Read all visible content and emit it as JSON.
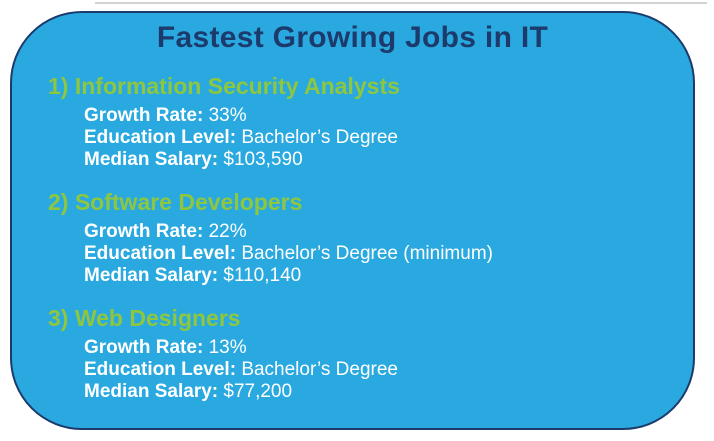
{
  "slide": {
    "title": "Fastest Growing Jobs in IT",
    "jobs": [
      {
        "rank": "1)",
        "name": "Information Security Analysts",
        "details": [
          {
            "label": "Growth Rate:",
            "value": "33%"
          },
          {
            "label": "Education Level:",
            "value": "Bachelor’s Degree"
          },
          {
            "label": "Median Salary:",
            "value": "$103,590"
          }
        ]
      },
      {
        "rank": "2)",
        "name": "Software Developers",
        "details": [
          {
            "label": "Growth Rate:",
            "value": "22%"
          },
          {
            "label": "Education Level:",
            "value": "Bachelor’s Degree (minimum)"
          },
          {
            "label": "Median Salary:",
            "value": "$110,140"
          }
        ]
      },
      {
        "rank": "3)",
        "name": "Web Designers",
        "details": [
          {
            "label": "Growth Rate:",
            "value": "13%"
          },
          {
            "label": "Education Level:",
            "value": "Bachelor’s Degree"
          },
          {
            "label": "Median Salary:",
            "value": "$77,200"
          }
        ]
      }
    ],
    "colors": {
      "page_background": "#ffffff",
      "card_fill": "#29a9e0",
      "border": "#1c3b6c",
      "title_text": "#1c3b6c",
      "heading_text": "#8ec73f",
      "detail_text": "#ffffff",
      "top_line": "#d2d2d2"
    }
  }
}
